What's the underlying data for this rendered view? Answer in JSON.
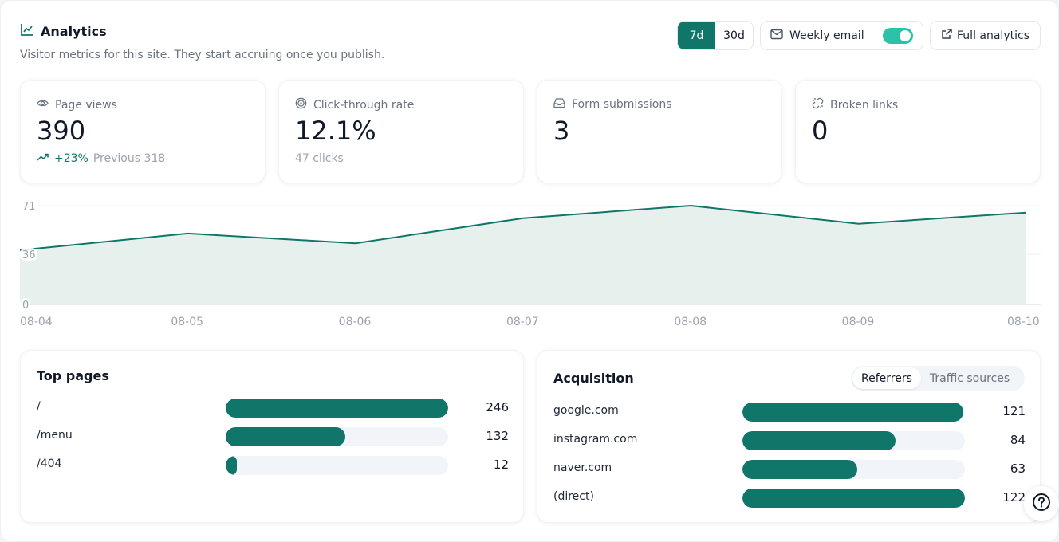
{
  "header": {
    "title": "Analytics",
    "subtitle": "Visitor metrics for this site. They start accruing once you publish.",
    "range_options": [
      "7d",
      "30d"
    ],
    "range_selected": "7d",
    "weekly_email_label": "Weekly email",
    "weekly_email_enabled": true,
    "full_analytics_label": "Full analytics"
  },
  "cards": [
    {
      "label": "Page views",
      "value": "390",
      "change": "+23%",
      "previous": "Previous 318",
      "icon": "eye-icon"
    },
    {
      "label": "Click-through rate",
      "value": "12.1%",
      "sub": "47 clicks",
      "icon": "target-icon"
    },
    {
      "label": "Form submissions",
      "value": "3",
      "icon": "inbox-icon"
    },
    {
      "label": "Broken links",
      "value": "0",
      "icon": "broken-link-icon"
    }
  ],
  "chart_data": {
    "type": "area",
    "x": [
      "08-04",
      "08-05",
      "08-06",
      "08-07",
      "08-08",
      "08-09",
      "08-10"
    ],
    "series": [
      {
        "values": [
          39,
          51,
          44,
          62,
          71,
          58,
          66
        ]
      }
    ],
    "ylim": [
      0,
      71
    ],
    "yticks": [
      "71",
      "36",
      "0"
    ],
    "grid": true,
    "color": "#11766a",
    "fill_color": "#e6f1ee"
  },
  "top_pages": {
    "title": "Top pages",
    "rows": [
      {
        "name": "/",
        "value": 246,
        "label": "246"
      },
      {
        "name": "/menu",
        "value": 132,
        "label": "132"
      },
      {
        "name": "/404",
        "value": 12,
        "label": "12"
      }
    ]
  },
  "acquisition": {
    "title": "Acquisition",
    "tabs": [
      "Referrers",
      "Traffic sources"
    ],
    "active_tab": "Referrers",
    "rows": [
      {
        "name": "google.com",
        "value": 121,
        "label": "121"
      },
      {
        "name": "instagram.com",
        "value": 84,
        "label": "84"
      },
      {
        "name": "naver.com",
        "value": 63,
        "label": "63"
      },
      {
        "name": "(direct)",
        "value": 122,
        "label": "122"
      }
    ]
  },
  "colors": {
    "accent": "#11766a",
    "toggle": "#2cc2a8"
  }
}
